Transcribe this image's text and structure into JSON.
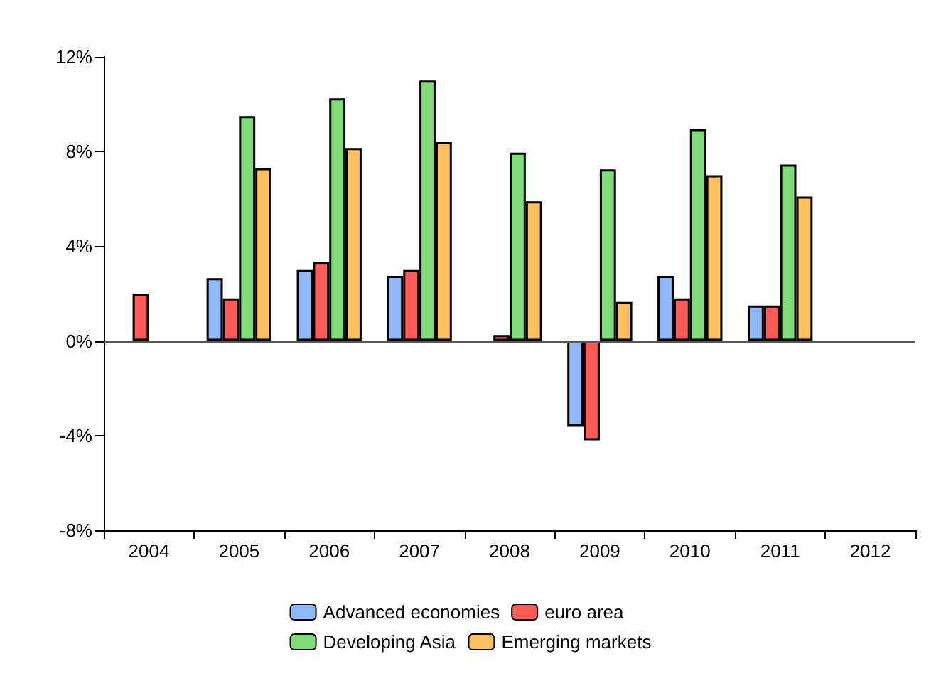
{
  "chart_data": {
    "type": "bar",
    "categories": [
      "2004",
      "2005",
      "2006",
      "2007",
      "2008",
      "2009",
      "2010",
      "2011",
      "2012"
    ],
    "series": [
      {
        "name": "Advanced economies",
        "color": "#8fb8f8",
        "values": [
          null,
          2.65,
          3.0,
          2.75,
          null,
          -3.6,
          2.75,
          1.5,
          null
        ]
      },
      {
        "name": "euro area",
        "color": "#ff5a5a",
        "values": [
          2.0,
          1.8,
          3.35,
          3.0,
          0.25,
          -4.2,
          1.8,
          1.5,
          null
        ]
      },
      {
        "name": "Developing Asia",
        "color": "#80dc78",
        "values": [
          null,
          9.5,
          10.25,
          11.0,
          7.95,
          7.25,
          8.95,
          7.45,
          null
        ]
      },
      {
        "name": "Emerging markets",
        "color": "#ffc060",
        "values": [
          null,
          7.3,
          8.15,
          8.4,
          5.9,
          1.65,
          7.0,
          6.1,
          null
        ]
      }
    ],
    "ylim": [
      -8,
      12
    ],
    "yticks": [
      {
        "value": -8,
        "label": "-8%"
      },
      {
        "value": -4,
        "label": "-4%"
      },
      {
        "value": 0,
        "label": "0%"
      },
      {
        "value": 4,
        "label": "4%"
      },
      {
        "value": 8,
        "label": "8%"
      },
      {
        "value": 12,
        "label": "12%"
      }
    ],
    "ref_lines": [
      {
        "axis": "y",
        "value": 0
      }
    ],
    "grid": false,
    "legend": "bottom"
  }
}
